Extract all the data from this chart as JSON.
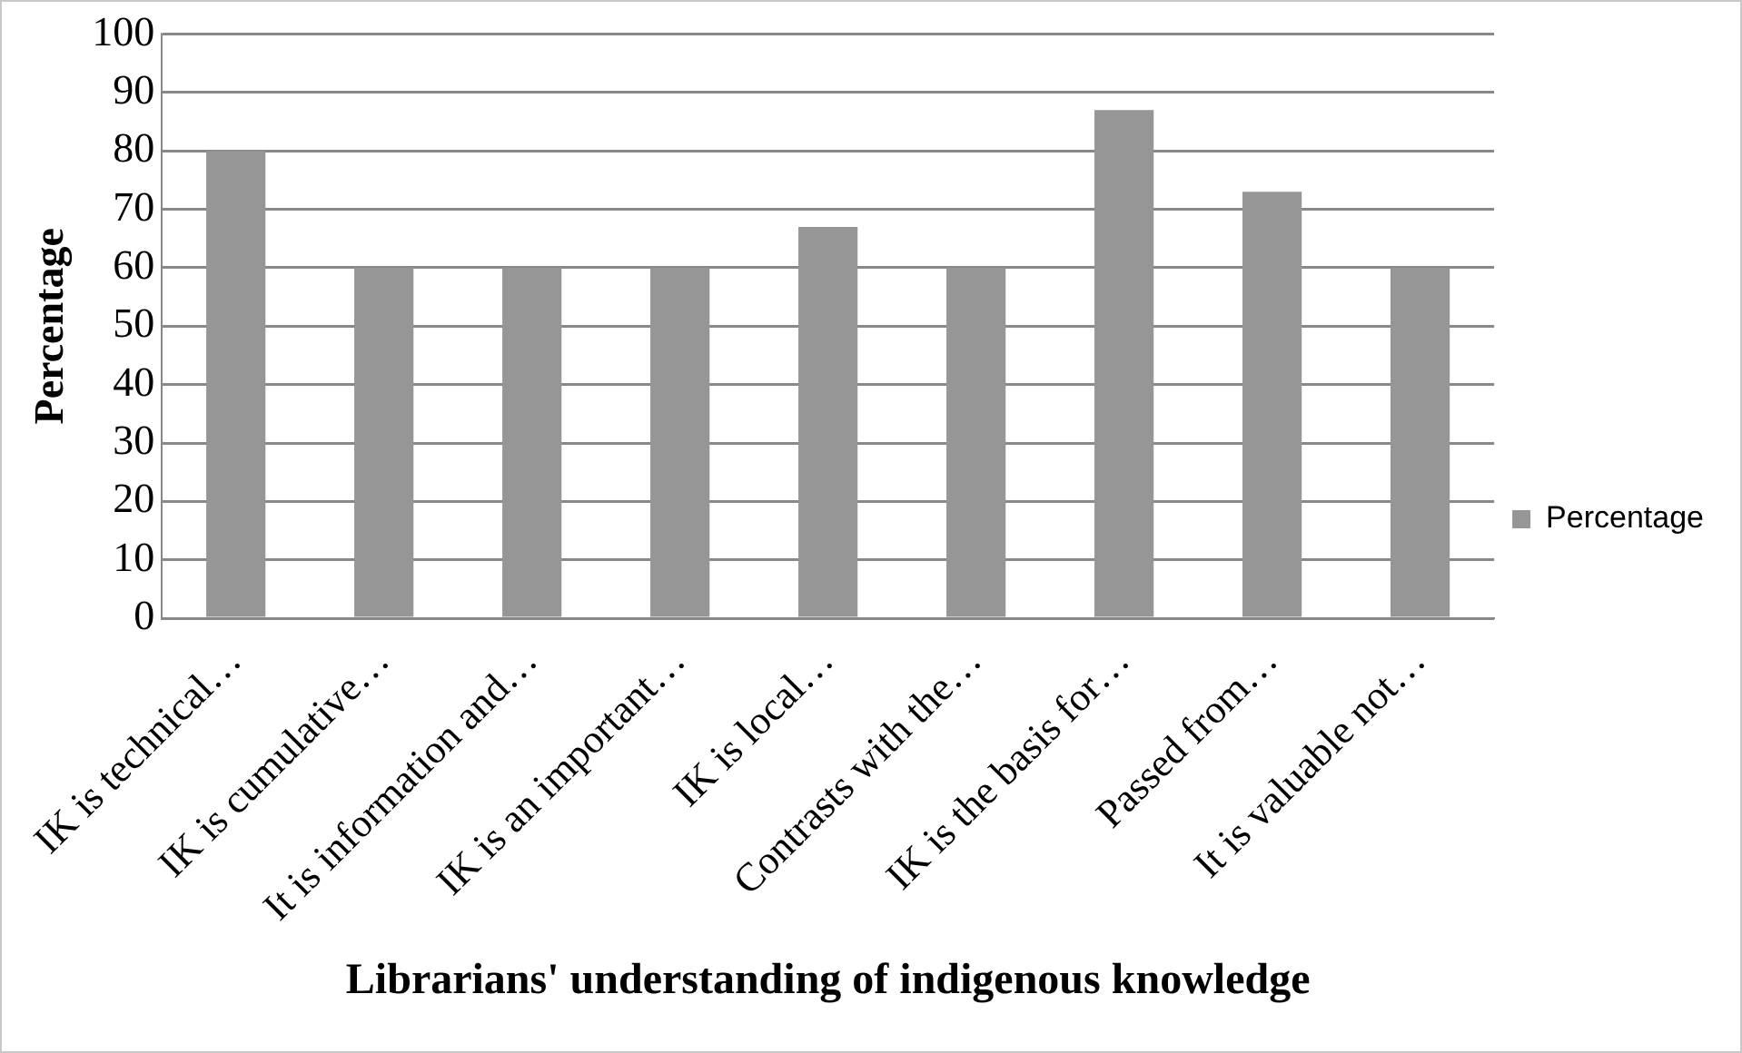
{
  "chart_data": {
    "type": "bar",
    "xlabel": "Librarians' understanding of indigenous knowledge",
    "ylabel": "Percentage",
    "categories": [
      "IK is technical…",
      "IK is cumulative…",
      "It is information and…",
      "IK is an important…",
      "IK is local…",
      "Contrasts with the…",
      "IK is the basis for…",
      "Passed from…",
      "It is valuable not…"
    ],
    "series": [
      {
        "name": "Percentage",
        "color": "#969696",
        "values": [
          80,
          60,
          60,
          60,
          67,
          60,
          87,
          73,
          60
        ]
      }
    ],
    "ylim": [
      0,
      100
    ],
    "yticks": [
      0,
      10,
      20,
      30,
      40,
      50,
      60,
      70,
      80,
      90,
      100
    ],
    "grid": "y",
    "legend": "right"
  }
}
